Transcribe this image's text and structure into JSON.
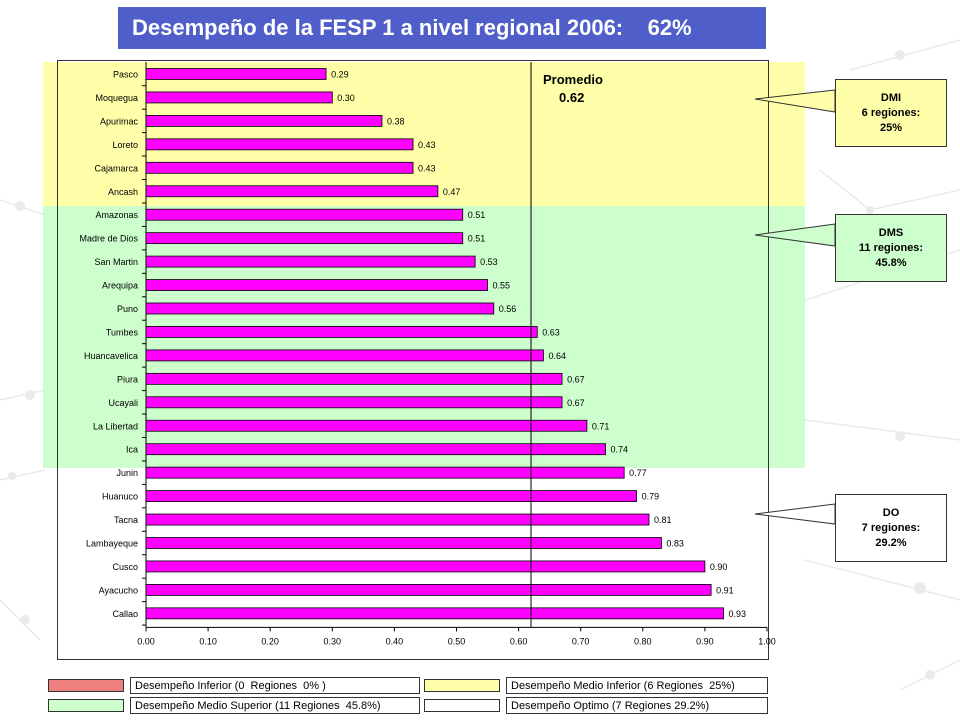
{
  "slide": {
    "title": "Desempeño de la FESP 1 a nivel regional 2006:    62%",
    "colors": {
      "title_bg": "#4f5ec9",
      "bar": "#ff00ff",
      "band_medio_inferior": "#ffffaa",
      "band_medio_superior": "#ccffcc",
      "inferior": "#f08080",
      "optimo": "#ffffff"
    }
  },
  "callouts": [
    {
      "lines": [
        "DMI",
        "6 regiones:",
        "25%"
      ]
    },
    {
      "lines": [
        "DMS",
        "11 regiones:",
        "45.8%"
      ]
    },
    {
      "lines": [
        "DO",
        "7 regiones:",
        "29.2%"
      ]
    }
  ],
  "legend": [
    {
      "label": "Desempeño Inferior (0  Regiones  0% )",
      "color": "#f08080"
    },
    {
      "label": "Desempeño Medio Inferior (6 Regiones  25%)",
      "color": "#ffffaa"
    },
    {
      "label": "Desempeño Medio Superior (11 Regiones  45.8%)",
      "color": "#ccffcc"
    },
    {
      "label": "Desempeño Optimo (7 Regiones 29.2%)",
      "color": "#ffffff"
    }
  ],
  "chart_data": {
    "type": "bar",
    "orientation": "horizontal",
    "categories": [
      "Pasco",
      "Moquegua",
      "Apurimac",
      "Loreto",
      "Cajamarca",
      "Ancash",
      "Amazonas",
      "Madre de Dios",
      "San Martin",
      "Arequipa",
      "Puno",
      "Tumbes",
      "Huancavelica",
      "Piura",
      "Ucayali",
      "La Libertad",
      "Ica",
      "Junin",
      "Huanuco",
      "Tacna",
      "Lambayeque",
      "Cusco",
      "Ayacucho",
      "Callao"
    ],
    "values": [
      0.29,
      0.3,
      0.38,
      0.43,
      0.43,
      0.47,
      0.51,
      0.51,
      0.53,
      0.55,
      0.56,
      0.63,
      0.64,
      0.67,
      0.67,
      0.71,
      0.74,
      0.77,
      0.79,
      0.81,
      0.83,
      0.9,
      0.91,
      0.93
    ],
    "value_labels": [
      "0.29",
      "0.30",
      "0.38",
      "0.43",
      "0.43",
      "0.47",
      "0.51",
      "0.51",
      "0.53",
      "0.55",
      "0.56",
      "0.63",
      "0.64",
      "0.67",
      "0.67",
      "0.71",
      "0.74",
      "0.77",
      "0.79",
      "0.81",
      "0.83",
      "0.90",
      "0.91",
      "0.93"
    ],
    "xlim": [
      0,
      1
    ],
    "xticks": [
      0,
      0.1,
      0.2,
      0.3,
      0.4,
      0.5,
      0.6,
      0.7,
      0.8,
      0.9,
      1.0
    ],
    "xtick_labels": [
      "0.00",
      "0.10",
      "0.20",
      "0.30",
      "0.40",
      "0.50",
      "0.60",
      "0.70",
      "0.80",
      "0.90",
      "1.00"
    ],
    "reference_line": {
      "value": 0.62,
      "label": "Promedio",
      "value_label": "0.62"
    },
    "bands": [
      {
        "name": "DMI",
        "from_category": "Pasco",
        "to_category": "Ancash"
      },
      {
        "name": "DMS",
        "from_category": "Amazonas",
        "to_category": "Ica"
      },
      {
        "name": "DO",
        "from_category": "Junin",
        "to_category": "Callao"
      }
    ],
    "grid": false
  }
}
